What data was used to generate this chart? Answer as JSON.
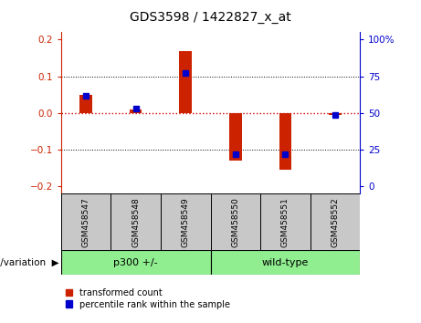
{
  "title": "GDS3598 / 1422827_x_at",
  "samples": [
    "GSM458547",
    "GSM458548",
    "GSM458549",
    "GSM458550",
    "GSM458551",
    "GSM458552"
  ],
  "red_values": [
    0.05,
    0.01,
    0.17,
    -0.13,
    -0.155,
    -0.005
  ],
  "blue_pct": [
    62,
    53,
    77,
    22,
    22,
    49
  ],
  "groups": [
    {
      "label": "p300 +/-",
      "span": [
        0,
        3
      ]
    },
    {
      "label": "wild-type",
      "span": [
        3,
        6
      ]
    }
  ],
  "group_label": "genotype/variation",
  "ylim": [
    -0.22,
    0.22
  ],
  "yticks_left": [
    -0.2,
    -0.1,
    0.0,
    0.1,
    0.2
  ],
  "yticks_right": [
    0,
    25,
    50,
    75,
    100
  ],
  "red_color": "#CC2200",
  "blue_color": "#0000CC",
  "zero_line_color": "#CC0000",
  "legend_red": "transformed count",
  "legend_blue": "percentile rank within the sample",
  "tick_box_color": "#C8C8C8",
  "group_color": "#90EE90",
  "bar_width": 0.25
}
